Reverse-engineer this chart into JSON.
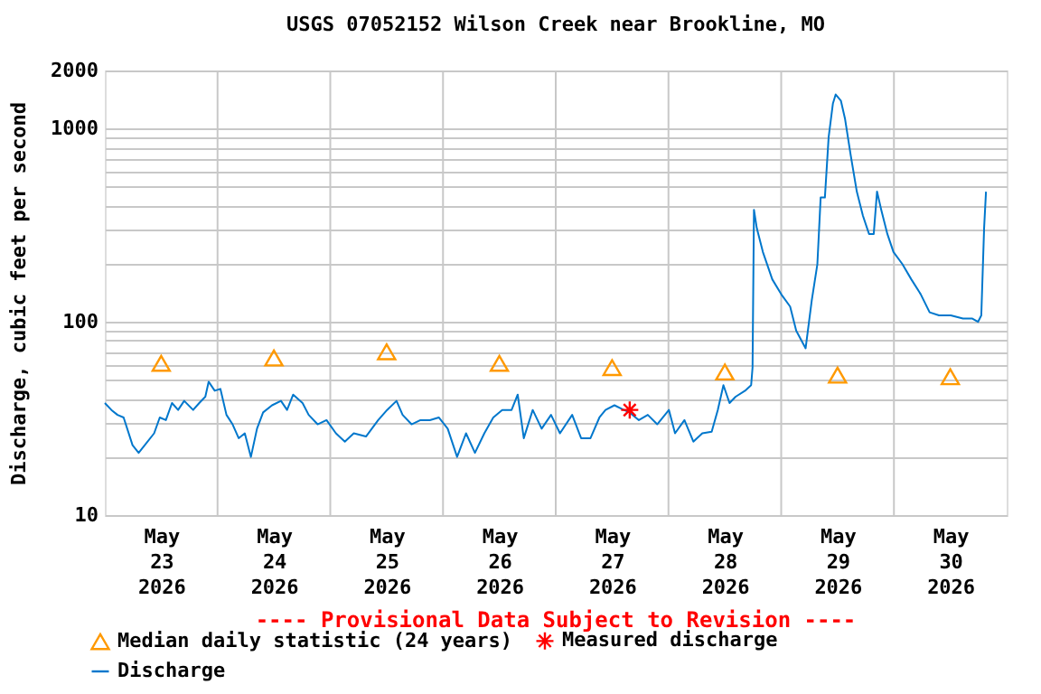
{
  "chart_data": {
    "type": "line",
    "title": "USGS 07052152 Wilson Creek near Brookline, MO",
    "ylabel": "Discharge, cubic feet per second",
    "annotations": [
      "---- Provisional Data Subject to Revision ----"
    ],
    "log": "y",
    "grid": true,
    "legend": "bottom",
    "xlim": [
      "2026-05-23T00:00",
      "2026-05-31T00:00"
    ],
    "xticks": [
      {
        "value": "2026-05-23T12:00",
        "label": "May 23 2026"
      },
      {
        "value": "2026-05-24T12:00",
        "label": "May 24 2026"
      },
      {
        "value": "2026-05-25T12:00",
        "label": "May 25 2026"
      },
      {
        "value": "2026-05-26T12:00",
        "label": "May 26 2026"
      },
      {
        "value": "2026-05-27T12:00",
        "label": "May 27 2026"
      },
      {
        "value": "2026-05-28T12:00",
        "label": "May 28 2026"
      },
      {
        "value": "2026-05-29T12:00",
        "label": "May 29 2026"
      },
      {
        "value": "2026-05-30T12:00",
        "label": "May 30 2026"
      },
      {
        "value": "2026-05-24T00:00",
        "label": null
      },
      {
        "value": "2026-05-25T00:00",
        "label": null
      },
      {
        "value": "2026-05-26T00:00",
        "label": null
      },
      {
        "value": "2026-05-27T00:00",
        "label": null
      },
      {
        "value": "2026-05-28T00:00",
        "label": null
      },
      {
        "value": "2026-05-29T00:00",
        "label": null
      },
      {
        "value": "2026-05-30T00:00",
        "label": null
      }
    ],
    "ylim": [
      10,
      2000
    ],
    "yticks": [
      10,
      {
        "value": 20,
        "label": null
      },
      {
        "value": 30,
        "label": null
      },
      {
        "value": 40,
        "label": null
      },
      {
        "value": 50,
        "label": null
      },
      {
        "value": 60,
        "label": null
      },
      {
        "value": 70,
        "label": null
      },
      {
        "value": 80,
        "label": null
      },
      {
        "value": 90,
        "label": null
      },
      100,
      {
        "value": 200,
        "label": null
      },
      {
        "value": 300,
        "label": null
      },
      {
        "value": 400,
        "label": null
      },
      {
        "value": 500,
        "label": null
      },
      {
        "value": 600,
        "label": null
      },
      {
        "value": 700,
        "label": null
      },
      {
        "value": 800,
        "label": null
      },
      {
        "value": 900,
        "label": null
      },
      1000,
      2000
    ],
    "series": [
      {
        "name": "Median daily statistic (24 years)",
        "type": "scatter",
        "marker": "triangle",
        "color": "#ff9900",
        "x": [
          "2026-05-23T12:00",
          "2026-05-24T12:00",
          "2026-05-25T12:00",
          "2026-05-26T12:00",
          "2026-05-27T12:00",
          "2026-05-28T12:00",
          "2026-05-29T12:00",
          "2026-05-30T12:00"
        ],
        "values": [
          61,
          65,
          70,
          61,
          58,
          55,
          53,
          52
        ]
      },
      {
        "name": "Measured discharge",
        "type": "scatter",
        "marker": "cross",
        "color": "#ff0000",
        "x": [
          "2026-05-27T15:45"
        ],
        "values": [
          35
        ]
      },
      {
        "name": "Discharge",
        "color": "#0077cc",
        "x": [
          "2026-05-23T00:00",
          "2026-05-23T01:24",
          "2026-05-23T02:42",
          "2026-05-23T04:00",
          "2026-05-23T05:54",
          "2026-05-23T07:12",
          "2026-05-23T08:30",
          "2026-05-23T10:30",
          "2026-05-23T11:42",
          "2026-05-23T13:00",
          "2026-05-23T14:18",
          "2026-05-23T15:36",
          "2026-05-23T16:54",
          "2026-05-23T18:48",
          "2026-05-23T20:06",
          "2026-05-23T21:24",
          "2026-05-23T22:06",
          "2026-05-23T23:24",
          "2026-05-24T00:36",
          "2026-05-24T01:54",
          "2026-05-24T03:12",
          "2026-05-24T04:30",
          "2026-05-24T05:48",
          "2026-05-24T07:06",
          "2026-05-24T08:24",
          "2026-05-24T09:42",
          "2026-05-24T11:36",
          "2026-05-24T13:30",
          "2026-05-24T14:48",
          "2026-05-24T16:06",
          "2026-05-24T18:06",
          "2026-05-24T19:24",
          "2026-05-24T21:18",
          "2026-05-24T23:12",
          "2026-05-25T01:12",
          "2026-05-25T03:06",
          "2026-05-25T05:00",
          "2026-05-25T07:36",
          "2026-05-25T10:12",
          "2026-05-25T12:06",
          "2026-05-25T14:06",
          "2026-05-25T15:24",
          "2026-05-25T17:18",
          "2026-05-25T19:12",
          "2026-05-25T21:12",
          "2026-05-25T23:06",
          "2026-05-26T01:00",
          "2026-05-26T03:00",
          "2026-05-26T04:54",
          "2026-05-26T06:48",
          "2026-05-26T08:48",
          "2026-05-26T10:42",
          "2026-05-26T12:36",
          "2026-05-26T14:36",
          "2026-05-26T15:54",
          "2026-05-26T17:12",
          "2026-05-26T19:06",
          "2026-05-26T21:00",
          "2026-05-26T23:00",
          "2026-05-27T00:54",
          "2026-05-27T03:30",
          "2026-05-27T05:24",
          "2026-05-27T07:24",
          "2026-05-27T09:18",
          "2026-05-27T10:36",
          "2026-05-27T12:30",
          "2026-05-27T14:30",
          "2026-05-27T15:42",
          "2026-05-27T17:42",
          "2026-05-27T19:36",
          "2026-05-27T21:36",
          "2026-05-28T00:06",
          "2026-05-28T01:24",
          "2026-05-28T03:24",
          "2026-05-28T05:18",
          "2026-05-28T07:12",
          "2026-05-28T09:12",
          "2026-05-28T10:30",
          "2026-05-28T11:42",
          "2026-05-28T13:00",
          "2026-05-28T14:18",
          "2026-05-28T16:18",
          "2026-05-28T17:36",
          "2026-05-28T17:54",
          "2026-05-28T18:12",
          "2026-05-28T18:48",
          "2026-05-28T20:06",
          "2026-05-28T22:06",
          "2026-05-29T00:00",
          "2026-05-29T01:54",
          "2026-05-29T03:12",
          "2026-05-29T05:12",
          "2026-05-29T06:30",
          "2026-05-29T07:42",
          "2026-05-29T08:24",
          "2026-05-29T09:18",
          "2026-05-29T10:06",
          "2026-05-29T11:00",
          "2026-05-29T11:36",
          "2026-05-29T12:42",
          "2026-05-29T13:36",
          "2026-05-29T14:48",
          "2026-05-29T16:06",
          "2026-05-29T17:24",
          "2026-05-29T18:42",
          "2026-05-29T19:42",
          "2026-05-29T20:24",
          "2026-05-29T21:18",
          "2026-05-29T22:36",
          "2026-05-29T23:54",
          "2026-05-30T01:48",
          "2026-05-30T03:42",
          "2026-05-30T05:42",
          "2026-05-30T07:36",
          "2026-05-30T09:36",
          "2026-05-30T12:06",
          "2026-05-30T14:42",
          "2026-05-30T16:42",
          "2026-05-30T17:54",
          "2026-05-30T18:36",
          "2026-05-30T19:12",
          "2026-05-30T19:36"
        ],
        "values": [
          38,
          35,
          33,
          32,
          23,
          21,
          23,
          26.5,
          32,
          31,
          38,
          35,
          39,
          35,
          38,
          41,
          49,
          44,
          45,
          33,
          29.5,
          25,
          26.5,
          20,
          28,
          34,
          37,
          39,
          35,
          42,
          38,
          33,
          29.5,
          31,
          26.5,
          24,
          26.5,
          25.5,
          31,
          35,
          39,
          33,
          29.5,
          31,
          31,
          32,
          28,
          20,
          26.5,
          21,
          26.5,
          32,
          35,
          35,
          42,
          25,
          35,
          28,
          33,
          26.5,
          33,
          25,
          25,
          32,
          35,
          37,
          35,
          34,
          31,
          33,
          29.5,
          35,
          26.5,
          31,
          24,
          26.5,
          27,
          35,
          47,
          38,
          41,
          44,
          47,
          58,
          380,
          306,
          230,
          166,
          139,
          120,
          90,
          73,
          129,
          199,
          440,
          440,
          903,
          1346,
          1503,
          1397,
          1120,
          728,
          472,
          354,
          285,
          285,
          472,
          380,
          285,
          230,
          199,
          166,
          139,
          112,
          108,
          108,
          104,
          104,
          100,
          108,
          306,
          472
        ]
      }
    ]
  }
}
